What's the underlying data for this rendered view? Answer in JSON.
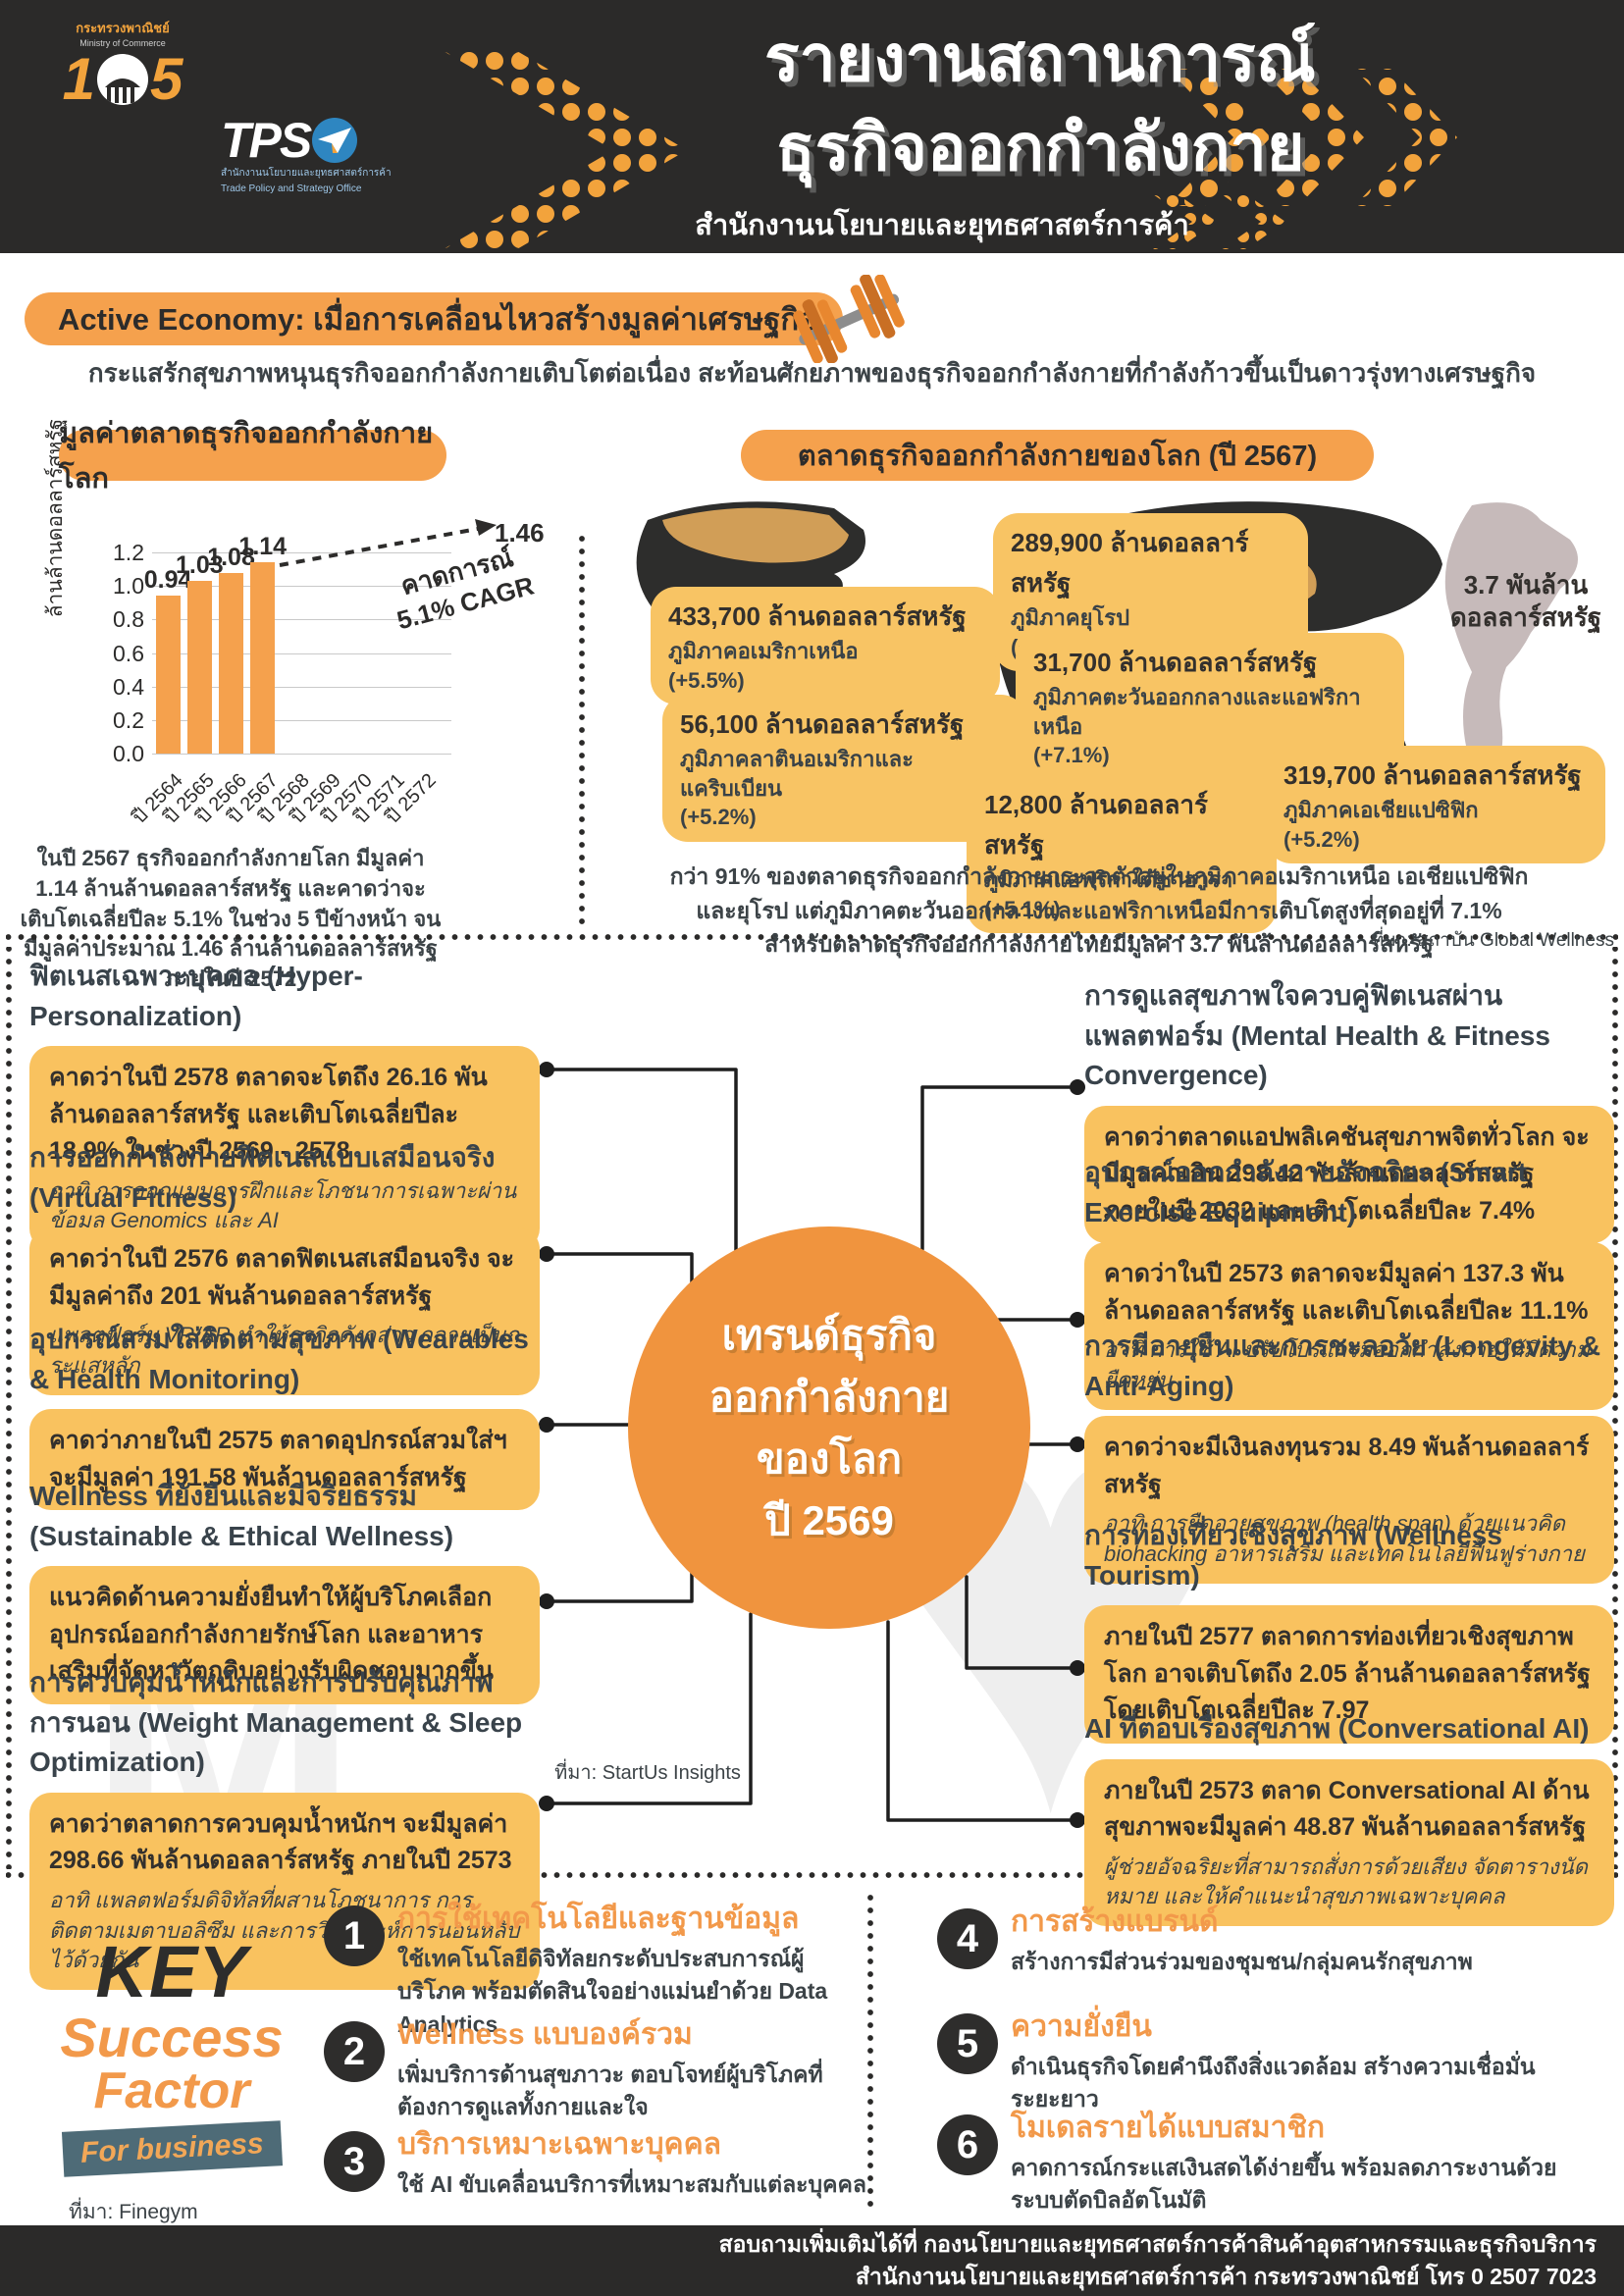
{
  "header": {
    "moc_caption1": "กระทรวงพาณิชย์",
    "moc_caption2": "Ministry of Commerce",
    "moc_digits": {
      "d1": "1",
      "d5": "5"
    },
    "tpso_text": "TPS",
    "tpso_caption1": "สำนักงานนโยบายและยุทธศาสตร์การค้า",
    "tpso_caption2": "Trade Policy and Strategy Office",
    "title_line1": "รายงานสถานการณ์",
    "title_line2": "ธุรกิจออกกำลังกาย",
    "subtitle": "สำนักงานนโยบายและยุทธศาสตร์การค้า"
  },
  "intro": {
    "badge": "Active Economy: เมื่อการเคลื่อนไหวสร้างมูลค่าเศรษฐกิจ",
    "lead": "กระแสรักสุขภาพหนุนธุรกิจออกกำลังกายเติบโตต่อเนื่อง สะท้อนศักยภาพของธุรกิจออกกำลังกายที่กำลังก้าวขึ้นเป็นดาวรุ่งทางเศรษฐกิจ"
  },
  "market_value": {
    "title": "มูลค่าตลาดธุรกิจออกกำลังกายโลก",
    "caption": "ในปี 2567 ธุรกิจออกกำลังกายโลก มีมูลค่า 1.14 ล้านล้านดอลลาร์สหรัฐ และคาดว่าจะเติบโตเฉลี่ยปีละ 5.1% ในช่วง 5 ปีข้างหน้า จนมีมูลค่าประมาณ 1.46 ล้านล้านดอลลาร์สหรัฐ ภายในปี 2572"
  },
  "chart_data": {
    "type": "bar",
    "title": "มูลค่าตลาดธุรกิจออกกำลังกายโลก",
    "categories": [
      "ปี 2564",
      "ปี 2565",
      "ปี 2566",
      "ปี 2567",
      "ปี 2568",
      "ปี 2569",
      "ปี 2570",
      "ปี 2571",
      "ปี 2572"
    ],
    "values": [
      0.94,
      1.03,
      1.08,
      1.14,
      null,
      null,
      null,
      null,
      null
    ],
    "forecast_label": "1.46",
    "forecast_year": "ปี 2572",
    "annotation_line1": "คาดการณ์",
    "annotation_line2": "5.1% CAGR",
    "xlabel": "",
    "ylabel": "ล้านล้านดอลลาร์สหรัฐ",
    "ylim": [
      0,
      1.2
    ],
    "yticks": [
      0.0,
      0.2,
      0.4,
      0.6,
      0.8,
      1.0,
      1.2
    ],
    "bar_color": "#f5a14d",
    "grid": true,
    "legend": false
  },
  "world_market": {
    "title": "ตลาดธุรกิจออกกำลังกายของโลก (ปี 2567)",
    "regions": [
      {
        "value": "433,700 ล้านดอลลาร์สหรัฐ",
        "region": "ภูมิภาคอเมริกาเหนือ",
        "growth": "(+5.5%)"
      },
      {
        "value": "289,900 ล้านดอลลาร์สหรัฐ",
        "region": "ภูมิภาคยุโรป",
        "growth": "(+7.0%)"
      },
      {
        "value": "31,700 ล้านดอลลาร์สหรัฐ",
        "region": "ภูมิภาคตะวันออกกลางและแอฟริกาเหนือ",
        "growth": "(+7.1%)"
      },
      {
        "value": "56,100 ล้านดอลลาร์สหรัฐ",
        "region": "ภูมิภาคลาตินอเมริกาและแคริบเบียน",
        "growth": "(+5.2%)"
      },
      {
        "value": "12,800 ล้านดอลลาร์สหรัฐ",
        "region": "ภูมิภาคแอฟริกาใต้ซาฮารา",
        "growth": "(+5.1%)"
      },
      {
        "value": "319,700 ล้านดอลลาร์สหรัฐ",
        "region": "ภูมิภาคเอเชียแปซิฟิก",
        "growth": "(+5.2%)"
      }
    ],
    "thailand_line1": "3.7 พันล้าน",
    "thailand_line2": "ดอลลาร์สหรัฐ",
    "summary_line1": "กว่า 91% ของตลาดธุรกิจออกกำลังกายกระจุกตัวอยู่ในภูมิภาคอเมริกาเหนือ เอเชียแปซิฟิก",
    "summary_line2": "และยุโรป แต่ภูมิภาคตะวันออกกลางและแอฟริกาเหนือมีการเติบโตสูงที่สุดอยู่ที่ 7.1%",
    "summary_line3": "สำหรับตลาดธุรกิจออกกำลังกายไทยมีมูลค่า 3.7 พันล้านดอลลาร์สหรัฐ",
    "source": "ที่มา: สถาบัน Global Wellness"
  },
  "trends": {
    "center_line1": "เทรนด์ธุรกิจ",
    "center_line2": "ออกกำลังกาย",
    "center_line3": "ของโลก",
    "center_line4": "ปี 2569",
    "source": "ที่มา: StartUs Insights",
    "left": [
      {
        "title": "ฟิตเนสเฉพาะบุคคล (Hyper-Personalization)",
        "body": "คาดว่าในปี 2578 ตลาดจะโตถึง 26.16 พันล้านดอลลาร์สหรัฐ และเติบโตเฉลี่ยปีละ 18.9% ในช่วงปี 2569 - 2578",
        "note": "อาทิ การออกแบบการฝึกและโภชนาการเฉพาะผ่านข้อมูล Genomics และ AI"
      },
      {
        "title": "การออกกำลังกายฟิตเนสแบบเสมือนจริง (Virtual Fitness)",
        "body": "คาดว่าในปี 2576 ตลาดฟิตเนสเสมือนจริง จะมีมูลค่าถึง 201 พันล้านดอลลาร์สหรัฐ",
        "note": "แพลตฟอร์ม VR/AR ทำให้ธุรกิจดังกล่าว กลายเป็นกระแสหลัก"
      },
      {
        "title": "อุปกรณ์สวมใส่ติดตามสุขภาพ (Wearables & Health Monitoring)",
        "body": "คาดว่าภายในปี 2575 ตลาดอุปกรณ์สวมใส่ฯ จะมีมูลค่า 191.58 พันล้านดอลลาร์สหรัฐ",
        "note": ""
      },
      {
        "title": "Wellness ที่ยั่งยืนและมีจริยธรรม (Sustainable & Ethical Wellness)",
        "body": "แนวคิดด้านความยั่งยืนทำให้ผู้บริโภคเลือกอุปกรณ์ออกกำลังกายรักษ์โลก และอาหารเสริมที่จัดหาวัตถุดิบอย่างรับผิดชอบมากขึ้น",
        "note": ""
      },
      {
        "title": "การควบคุมน้ำหนักและการปรับคุณภาพการนอน (Weight Management & Sleep Optimization)",
        "body": "คาดว่าตลาดการควบคุมน้ำหนักฯ จะมีมูลค่า 298.66 พันล้านดอลลาร์สหรัฐ ภายในปี 2573",
        "note": "อาทิ แพลตฟอร์มดิจิทัลที่ผสานโภชนาการ การติดตามเมตาบอลิซึม และการวิเคราะห์การนอนหลับไว้ด้วยกัน"
      }
    ],
    "right": [
      {
        "title": "การดูแลสุขภาพใจควบคู่ฟิตเนสผ่านแพลตฟอร์ม (Mental Health & Fitness Convergence)",
        "body": "คาดว่าตลาดแอปพลิเคชันสุขภาพจิตทั่วโลก จะมีมูลค่าเกิน 298.42 พันล้านดอลลาร์สหรัฐ ภายในปี 2032 และเติบโตเฉลี่ยปีละ 7.4%",
        "note": ""
      },
      {
        "title": "อุปกรณ์ออกกำลังกายอัจฉริยะ (Smart Exercise Equipment)",
        "body": "คาดว่าในปี 2573 ตลาดจะมีมูลค่า 137.3 พันล้านดอลลาร์สหรัฐ และเติบโตเฉลี่ยปีละ 11.1%",
        "note": "อาทิ การใช้ AI ปรับโปรแกรมออกกำลังกายให้มีความยืดหยุ่น"
      },
      {
        "title": "การมีอายุยืนและการชะลอวัย (Longevity & Anti-Aging)",
        "body": "คาดว่าจะมีเงินลงทุนรวม 8.49 พันล้านดอลลาร์สหรัฐ",
        "note": "อาทิ การยืดอายุสุขภาพ (health span) ด้วยแนวคิด biohacking อาหารเสริม และเทคโนโลยีฟื้นฟูร่างกาย"
      },
      {
        "title": "การท่องเที่ยวเชิงสุขภาพ (Wellness Tourism)",
        "body": "ภายในปี 2577 ตลาดการท่องเที่ยวเชิงสุขภาพโลก อาจเติบโตถึง 2.05 ล้านล้านดอลลาร์สหรัฐ โดยเติบโตเฉลี่ยปีละ 7.97",
        "note": ""
      },
      {
        "title": "AI ที่ตอบเรื่องสุขภาพ (Conversational AI)",
        "body": "ภายในปี 2573 ตลาด Conversational AI ด้านสุขภาพจะมีมูลค่า 48.87 พันล้านดอลลาร์สหรัฐ",
        "note": "ผู้ช่วยอัจฉริยะที่สามารถสั่งการด้วยเสียง จัดตารางนัดหมาย และให้คำแนะนำสุขภาพเฉพาะบุคคล"
      }
    ]
  },
  "key_success": {
    "logo_key": "KEY",
    "logo_success": "Success",
    "logo_factor": "Factor",
    "logo_for_business": "For business",
    "source": "ที่มา: Finegym",
    "items": [
      {
        "num": "1",
        "title": "การใช้เทคโนโลยีและฐานข้อมูล",
        "desc": "ใช้เทคโนโลยีดิจิทัลยกระดับประสบการณ์ผู้บริโภค พร้อมตัดสินใจอย่างแม่นยำด้วย Data Analytics"
      },
      {
        "num": "2",
        "title": "Wellness แบบองค์รวม",
        "desc": "เพิ่มบริการด้านสุขภาวะ ตอบโจทย์ผู้บริโภคที่ต้องการดูแลทั้งกายและใจ"
      },
      {
        "num": "3",
        "title": "บริการเหมาะเฉพาะบุคคล",
        "desc": "ใช้ AI ขับเคลื่อนบริการที่เหมาะสมกับแต่ละบุคคล"
      },
      {
        "num": "4",
        "title": "การสร้างแบรนด์",
        "desc": "สร้างการมีส่วนร่วมของชุมชน/กลุ่มคนรักสุขภาพ"
      },
      {
        "num": "5",
        "title": "ความยั่งยืน",
        "desc": "ดำเนินธุรกิจโดยคำนึงถึงสิ่งแวดล้อม สร้างความเชื่อมั่นระยะยาว"
      },
      {
        "num": "6",
        "title": "โมเดลรายได้แบบสมาชิก",
        "desc": "คาดการณ์กระแสเงินสดได้ง่ายขึ้น พร้อมลดภาระงานด้วยระบบตัดบิลอัตโนมัติ"
      }
    ]
  },
  "footer": {
    "line1": "สอบถามเพิ่มเติมได้ที่ กองนโยบายและยุทธศาสตร์การค้าสินค้าอุตสาหกรรมและธุรกิจบริการ",
    "line2": "สำนักงานนโยบายและยุทธศาสตร์การค้า กระทรวงพาณิชย์ โทร 0 2507 7023"
  }
}
